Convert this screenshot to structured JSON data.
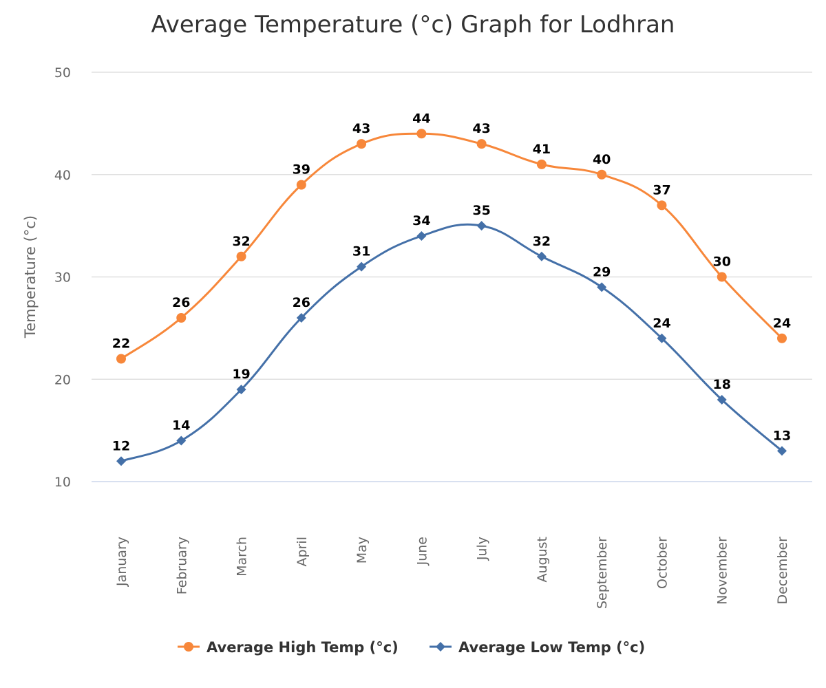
{
  "chart_data": {
    "type": "line",
    "title": "Average Temperature (°c) Graph for Lodhran",
    "xlabel": "",
    "ylabel": "Temperature (°c)",
    "ylim": [
      10,
      50
    ],
    "yticks": [
      10,
      20,
      30,
      40,
      50
    ],
    "grid": true,
    "smooth": true,
    "legend_position": "bottom",
    "categories": [
      "January",
      "February",
      "March",
      "April",
      "May",
      "June",
      "July",
      "August",
      "September",
      "October",
      "November",
      "December"
    ],
    "series": [
      {
        "name": "Average High Temp (°c)",
        "color": "#f7873a",
        "marker": "circle",
        "values": [
          22,
          26,
          32,
          39,
          43,
          44,
          43,
          41,
          40,
          37,
          30,
          24
        ]
      },
      {
        "name": "Average Low Temp (°c)",
        "color": "#4470a8",
        "marker": "diamond",
        "values": [
          12,
          14,
          19,
          26,
          31,
          34,
          35,
          32,
          29,
          24,
          18,
          13
        ]
      }
    ]
  }
}
